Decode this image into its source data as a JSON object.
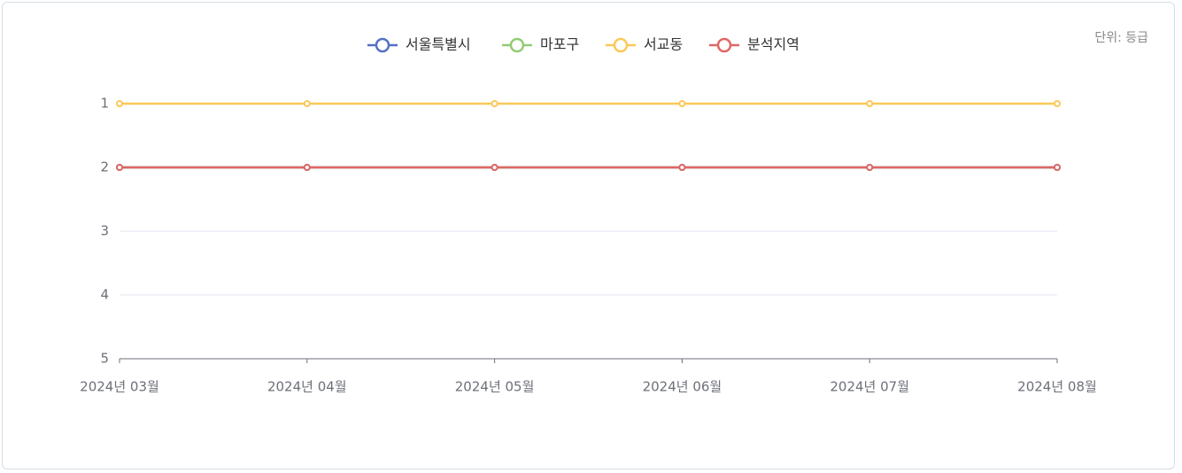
{
  "chart_data": {
    "type": "line",
    "unit_label": "단위: 등급",
    "categories": [
      "2024년 03월",
      "2024년 04월",
      "2024년 05월",
      "2024년 06월",
      "2024년 07월",
      "2024년 08월"
    ],
    "series": [
      {
        "name": "서울특별시",
        "color": "#5470c6",
        "values": [
          2,
          2,
          2,
          2,
          2,
          2
        ]
      },
      {
        "name": "마포구",
        "color": "#91cc75",
        "values": [
          2,
          2,
          2,
          2,
          2,
          2
        ]
      },
      {
        "name": "서교동",
        "color": "#fac858",
        "values": [
          1,
          1,
          1,
          1,
          1,
          1
        ]
      },
      {
        "name": "분석지역",
        "color": "#e06666",
        "values": [
          2,
          2,
          2,
          2,
          2,
          2
        ]
      }
    ],
    "ylim": [
      1,
      5
    ],
    "yticks": [
      1,
      2,
      3,
      4,
      5
    ],
    "y_inverted": true,
    "grid": true,
    "legend": "top"
  }
}
